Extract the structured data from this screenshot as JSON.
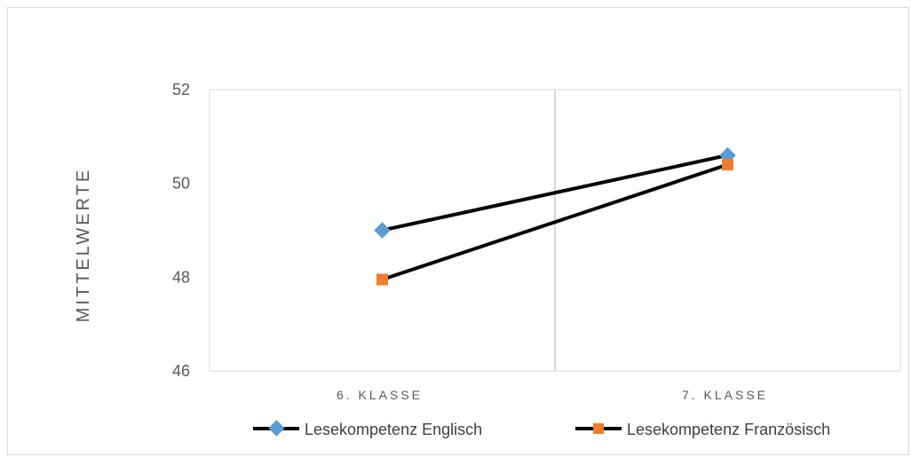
{
  "chart_data": {
    "type": "line",
    "title": "",
    "xlabel": "",
    "ylabel": "MITTELWERTE",
    "categories": [
      "6. KLASSE",
      "7. KLASSE"
    ],
    "ylim": [
      46,
      52
    ],
    "yticks": [
      46,
      48,
      50,
      52
    ],
    "grid": "vertical",
    "legend_position": "bottom",
    "series": [
      {
        "name": "Lesekompetenz Englisch",
        "values": [
          49.0,
          50.6
        ],
        "marker": "diamond",
        "marker_color": "#5b9bd5",
        "line_color": "#000000"
      },
      {
        "name": "Lesekompetenz Französisch",
        "values": [
          47.95,
          50.4
        ],
        "marker": "square",
        "marker_color": "#ed7d31",
        "line_color": "#000000"
      }
    ]
  }
}
